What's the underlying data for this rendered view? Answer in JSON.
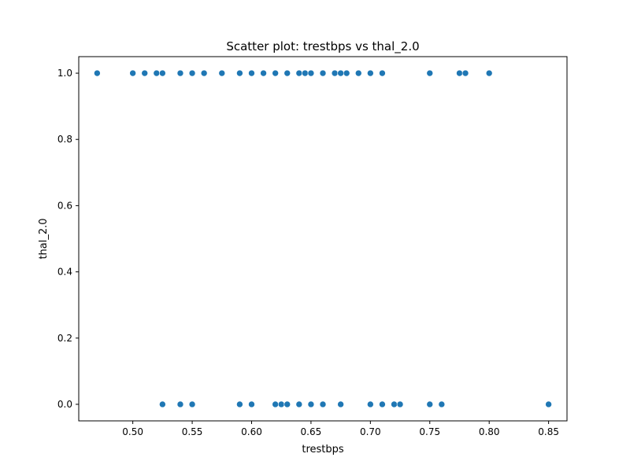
{
  "chart_data": {
    "type": "scatter",
    "title": "Scatter plot: trestbps vs thal_2.0",
    "xlabel": "trestbps",
    "ylabel": "thal_2.0",
    "xlim": [
      0.4545,
      0.8655
    ],
    "ylim": [
      -0.05,
      1.05
    ],
    "xticks": [
      0.5,
      0.55,
      0.6,
      0.65,
      0.7,
      0.75,
      0.8,
      0.85
    ],
    "xtick_labels": [
      "0.50",
      "0.55",
      "0.60",
      "0.65",
      "0.70",
      "0.75",
      "0.80",
      "0.85"
    ],
    "yticks": [
      0.0,
      0.2,
      0.4,
      0.6,
      0.8,
      1.0
    ],
    "ytick_labels": [
      "0.0",
      "0.2",
      "0.4",
      "0.6",
      "0.8",
      "1.0"
    ],
    "grid": false,
    "marker_color": "#1f77b4",
    "points": [
      {
        "x": 0.47,
        "y": 1
      },
      {
        "x": 0.5,
        "y": 1
      },
      {
        "x": 0.51,
        "y": 1
      },
      {
        "x": 0.52,
        "y": 1
      },
      {
        "x": 0.525,
        "y": 1
      },
      {
        "x": 0.54,
        "y": 1
      },
      {
        "x": 0.55,
        "y": 1
      },
      {
        "x": 0.56,
        "y": 1
      },
      {
        "x": 0.575,
        "y": 1
      },
      {
        "x": 0.59,
        "y": 1
      },
      {
        "x": 0.6,
        "y": 1
      },
      {
        "x": 0.61,
        "y": 1
      },
      {
        "x": 0.62,
        "y": 1
      },
      {
        "x": 0.63,
        "y": 1
      },
      {
        "x": 0.64,
        "y": 1
      },
      {
        "x": 0.645,
        "y": 1
      },
      {
        "x": 0.65,
        "y": 1
      },
      {
        "x": 0.66,
        "y": 1
      },
      {
        "x": 0.67,
        "y": 1
      },
      {
        "x": 0.675,
        "y": 1
      },
      {
        "x": 0.68,
        "y": 1
      },
      {
        "x": 0.69,
        "y": 1
      },
      {
        "x": 0.7,
        "y": 1
      },
      {
        "x": 0.71,
        "y": 1
      },
      {
        "x": 0.75,
        "y": 1
      },
      {
        "x": 0.775,
        "y": 1
      },
      {
        "x": 0.78,
        "y": 1
      },
      {
        "x": 0.8,
        "y": 1
      },
      {
        "x": 0.525,
        "y": 0
      },
      {
        "x": 0.54,
        "y": 0
      },
      {
        "x": 0.55,
        "y": 0
      },
      {
        "x": 0.59,
        "y": 0
      },
      {
        "x": 0.6,
        "y": 0
      },
      {
        "x": 0.62,
        "y": 0
      },
      {
        "x": 0.625,
        "y": 0
      },
      {
        "x": 0.63,
        "y": 0
      },
      {
        "x": 0.64,
        "y": 0
      },
      {
        "x": 0.65,
        "y": 0
      },
      {
        "x": 0.66,
        "y": 0
      },
      {
        "x": 0.675,
        "y": 0
      },
      {
        "x": 0.7,
        "y": 0
      },
      {
        "x": 0.71,
        "y": 0
      },
      {
        "x": 0.72,
        "y": 0
      },
      {
        "x": 0.725,
        "y": 0
      },
      {
        "x": 0.75,
        "y": 0
      },
      {
        "x": 0.76,
        "y": 0
      },
      {
        "x": 0.85,
        "y": 0
      }
    ]
  }
}
